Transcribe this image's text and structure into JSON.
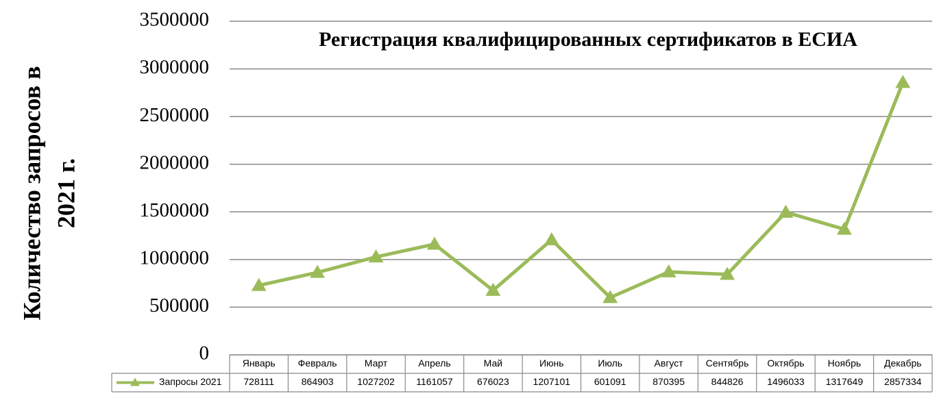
{
  "chart_data": {
    "type": "line",
    "title": "Регистрация квалифицированных сертификатов в ЕСИА",
    "y_label": [
      "Количество запросов  в",
      "2021 г."
    ],
    "categories": [
      "Январь",
      "Февраль",
      "Март",
      "Апрель",
      "Май",
      "Июнь",
      "Июль",
      "Август",
      "Сентябрь",
      "Октябрь",
      "Ноябрь",
      "Декабрь"
    ],
    "series": [
      {
        "name": "Запросы 2021",
        "color": "#9bbb59",
        "values": [
          728111,
          864903,
          1027202,
          1161057,
          676023,
          1207101,
          601091,
          870395,
          844826,
          1496033,
          1317649,
          2857334
        ]
      }
    ],
    "ylim": [
      0,
      3500000
    ],
    "yticks": [
      0,
      500000,
      1000000,
      1500000,
      2000000,
      2500000,
      3000000,
      3500000
    ],
    "grid": true,
    "data_table": true
  }
}
